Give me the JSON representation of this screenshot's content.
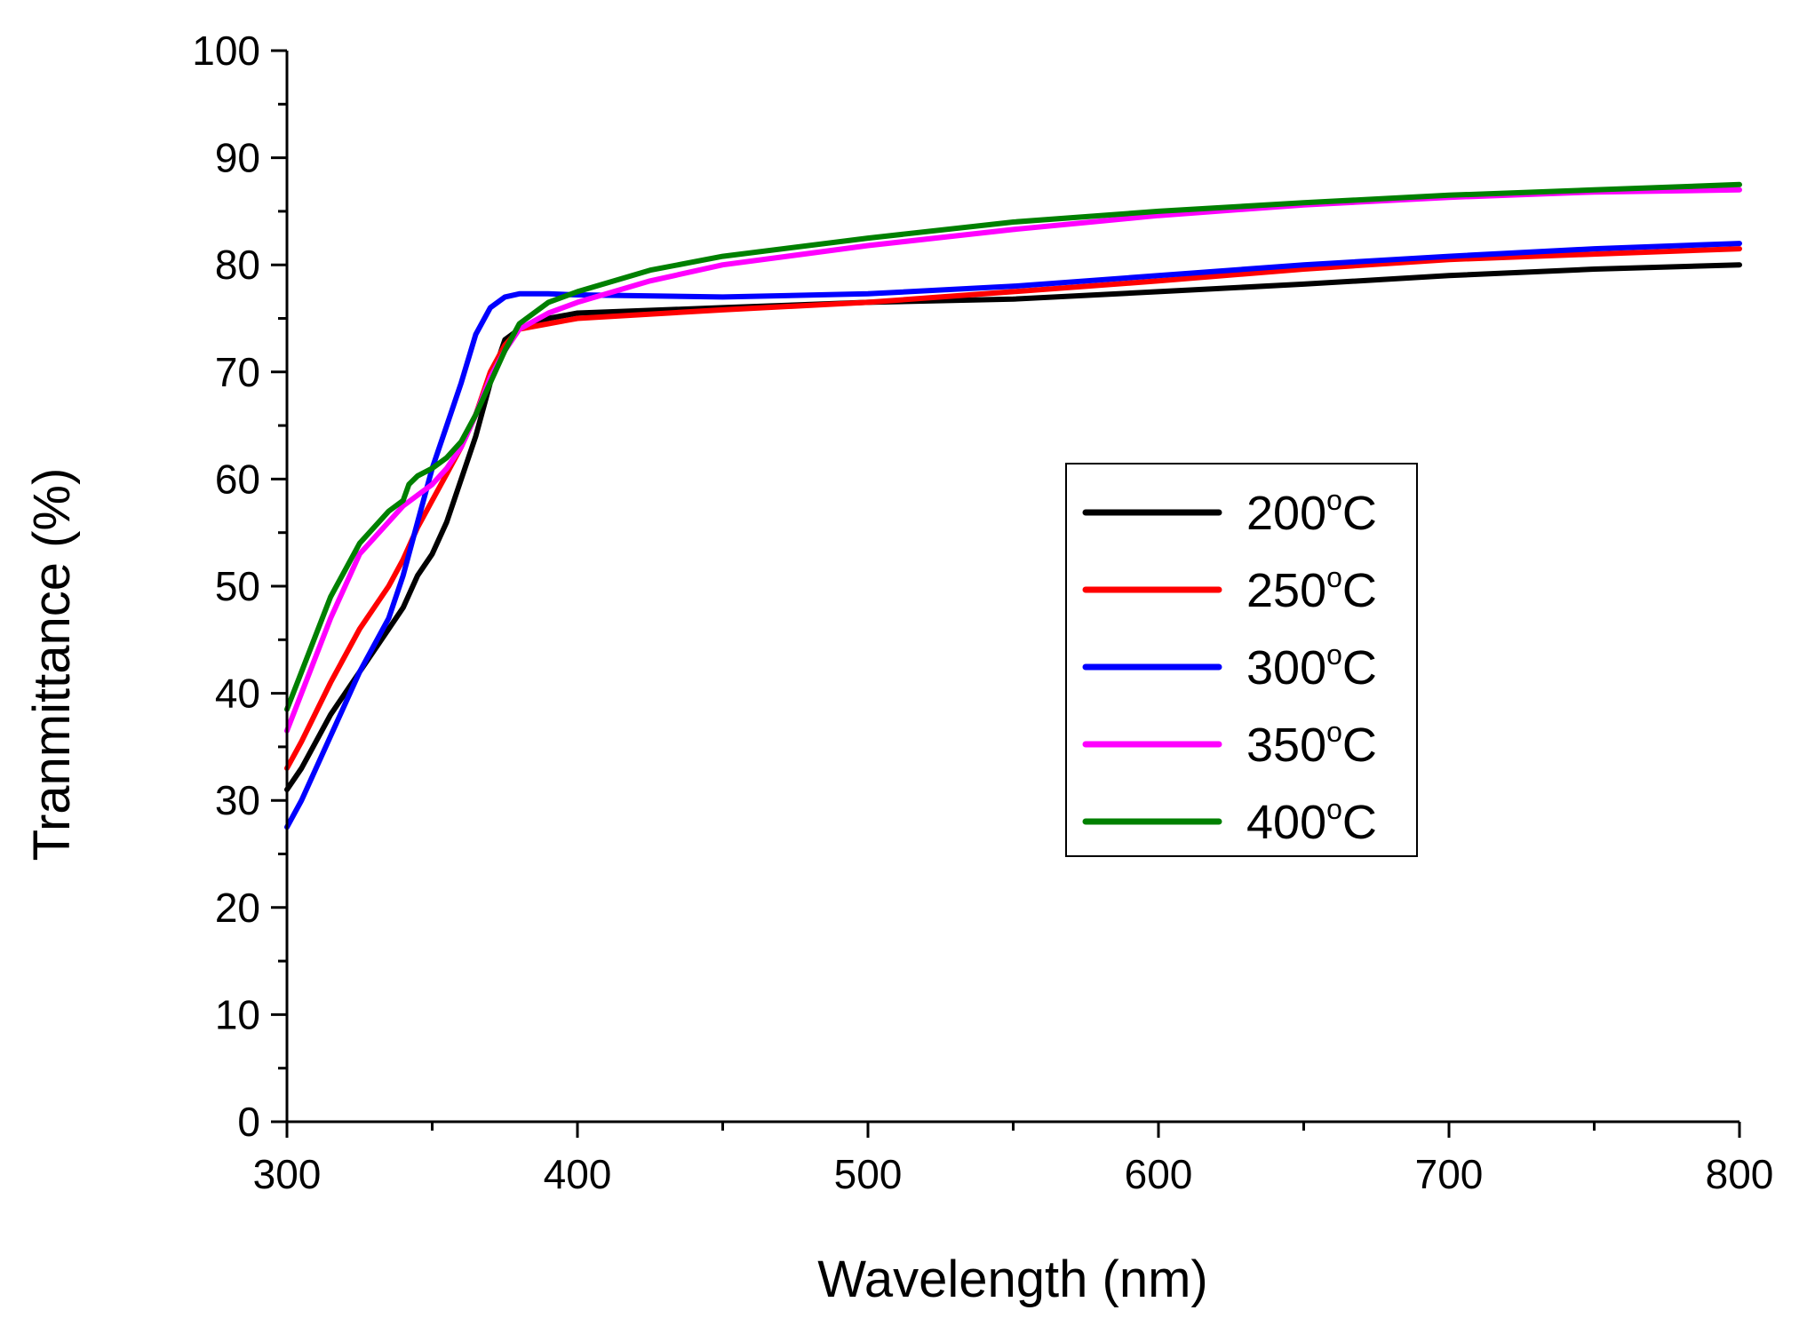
{
  "chart_data": {
    "type": "line",
    "title": "",
    "xlabel": "Wavelength (nm)",
    "ylabel": "Tranmittance (%)",
    "xlim": [
      300,
      800
    ],
    "ylim": [
      0,
      100
    ],
    "x_ticks": [
      300,
      400,
      500,
      600,
      700,
      800
    ],
    "y_ticks": [
      0,
      10,
      20,
      30,
      40,
      50,
      60,
      70,
      80,
      90,
      100
    ],
    "x_minor_step": 50,
    "y_minor_step": 5,
    "grid": false,
    "legend_position": "center-right",
    "series": [
      {
        "name": "200",
        "unit": "oC",
        "color": "#000000",
        "points": [
          [
            300,
            31
          ],
          [
            305,
            33
          ],
          [
            315,
            38
          ],
          [
            325,
            42
          ],
          [
            335,
            46
          ],
          [
            340,
            48
          ],
          [
            345,
            51
          ],
          [
            350,
            53
          ],
          [
            355,
            56
          ],
          [
            360,
            60
          ],
          [
            365,
            64
          ],
          [
            370,
            69
          ],
          [
            375,
            73
          ],
          [
            380,
            74
          ],
          [
            390,
            75
          ],
          [
            400,
            75.5
          ],
          [
            450,
            76
          ],
          [
            500,
            76.5
          ],
          [
            550,
            76.8
          ],
          [
            600,
            77.5
          ],
          [
            650,
            78.2
          ],
          [
            700,
            79
          ],
          [
            750,
            79.6
          ],
          [
            800,
            80
          ]
        ]
      },
      {
        "name": "250",
        "unit": "oC",
        "color": "#ff0000",
        "points": [
          [
            300,
            33
          ],
          [
            305,
            35.5
          ],
          [
            315,
            41
          ],
          [
            325,
            46
          ],
          [
            335,
            50
          ],
          [
            340,
            52.5
          ],
          [
            345,
            55.5
          ],
          [
            350,
            58
          ],
          [
            355,
            60.5
          ],
          [
            360,
            63
          ],
          [
            365,
            66
          ],
          [
            370,
            70
          ],
          [
            375,
            72.5
          ],
          [
            380,
            74
          ],
          [
            390,
            74.5
          ],
          [
            400,
            75
          ],
          [
            450,
            75.8
          ],
          [
            500,
            76.5
          ],
          [
            550,
            77.5
          ],
          [
            600,
            78.5
          ],
          [
            650,
            79.6
          ],
          [
            700,
            80.5
          ],
          [
            750,
            81
          ],
          [
            800,
            81.5
          ]
        ]
      },
      {
        "name": "300",
        "unit": "oC",
        "color": "#0000ff",
        "points": [
          [
            300,
            27.5
          ],
          [
            305,
            30
          ],
          [
            315,
            36
          ],
          [
            325,
            42
          ],
          [
            335,
            47
          ],
          [
            340,
            51
          ],
          [
            345,
            56
          ],
          [
            350,
            61
          ],
          [
            355,
            65
          ],
          [
            360,
            69
          ],
          [
            365,
            73.5
          ],
          [
            370,
            76
          ],
          [
            375,
            77
          ],
          [
            380,
            77.3
          ],
          [
            390,
            77.3
          ],
          [
            400,
            77.2
          ],
          [
            450,
            77
          ],
          [
            500,
            77.3
          ],
          [
            550,
            78
          ],
          [
            600,
            79
          ],
          [
            650,
            80
          ],
          [
            700,
            80.8
          ],
          [
            750,
            81.5
          ],
          [
            800,
            82
          ]
        ]
      },
      {
        "name": "350",
        "unit": "oC",
        "color": "#ff00ff",
        "points": [
          [
            300,
            36.5
          ],
          [
            305,
            40
          ],
          [
            315,
            47
          ],
          [
            325,
            53
          ],
          [
            335,
            56
          ],
          [
            340,
            57.5
          ],
          [
            345,
            58.5
          ],
          [
            350,
            59.5
          ],
          [
            355,
            61
          ],
          [
            360,
            63
          ],
          [
            365,
            66
          ],
          [
            370,
            69.5
          ],
          [
            375,
            72
          ],
          [
            380,
            74
          ],
          [
            390,
            75.5
          ],
          [
            400,
            76.5
          ],
          [
            425,
            78.5
          ],
          [
            450,
            80
          ],
          [
            500,
            81.8
          ],
          [
            550,
            83.3
          ],
          [
            600,
            84.6
          ],
          [
            650,
            85.6
          ],
          [
            700,
            86.3
          ],
          [
            750,
            86.8
          ],
          [
            800,
            87
          ]
        ]
      },
      {
        "name": "400",
        "unit": "oC",
        "color": "#008000",
        "points": [
          [
            300,
            38.5
          ],
          [
            305,
            42
          ],
          [
            315,
            49
          ],
          [
            325,
            54
          ],
          [
            335,
            57
          ],
          [
            340,
            58
          ],
          [
            342,
            59.5
          ],
          [
            345,
            60.3
          ],
          [
            350,
            61
          ],
          [
            355,
            62
          ],
          [
            360,
            63.5
          ],
          [
            365,
            66
          ],
          [
            370,
            69
          ],
          [
            375,
            72
          ],
          [
            380,
            74.5
          ],
          [
            390,
            76.5
          ],
          [
            400,
            77.5
          ],
          [
            425,
            79.5
          ],
          [
            450,
            80.8
          ],
          [
            500,
            82.5
          ],
          [
            550,
            84
          ],
          [
            600,
            85
          ],
          [
            650,
            85.8
          ],
          [
            700,
            86.5
          ],
          [
            750,
            87
          ],
          [
            800,
            87.5
          ]
        ]
      }
    ]
  }
}
